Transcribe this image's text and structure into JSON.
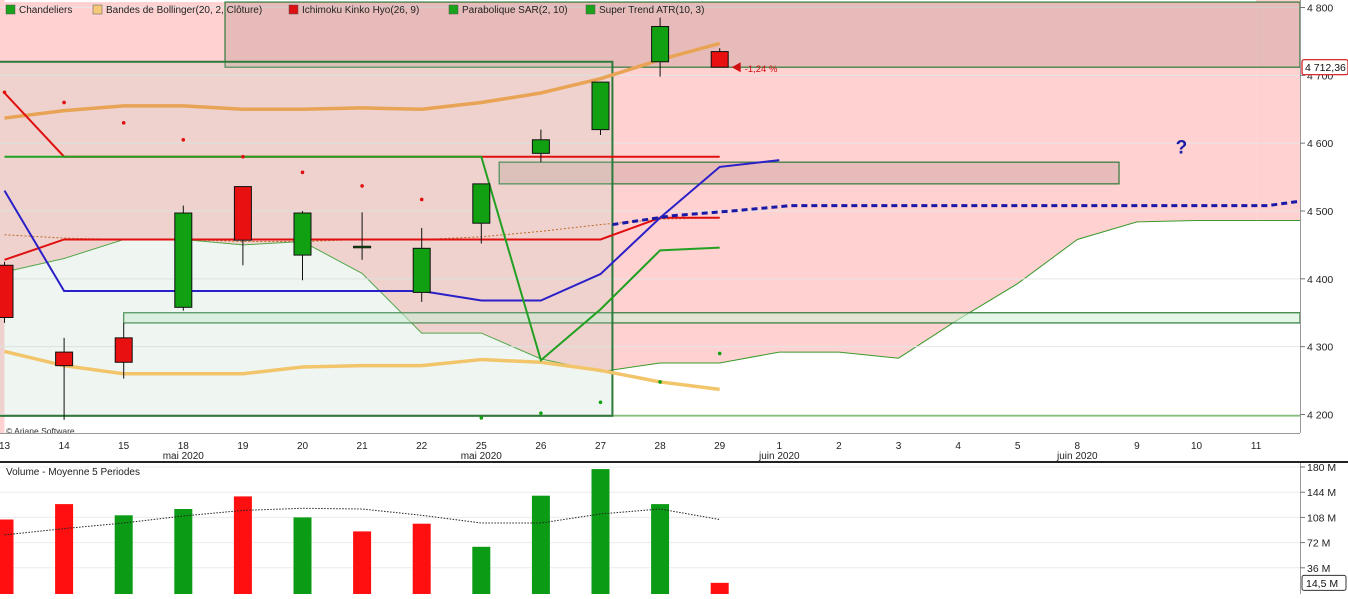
{
  "chart_data": [
    {
      "type": "candlestick",
      "legend": [
        {
          "label": "Chandeliers",
          "color": "#1aa31a"
        },
        {
          "label": "Bandes de Bollinger(20, 2, Clôture)",
          "color": "#f5c87a"
        },
        {
          "label": "Ichimoku Kinko Hyo(26, 9)",
          "color": "#dd1111"
        },
        {
          "label": "Parabolique SAR(2, 10)",
          "color": "#1aa31a"
        },
        {
          "label": "Super Trend ATR(10, 3)",
          "color": "#1aa31a"
        }
      ],
      "legend_position": "top-left",
      "copyright": "© Ariane Software",
      "ylim": [
        4180,
        4810
      ],
      "y_ticks": [
        4200,
        4300,
        4400,
        4500,
        4600,
        4700,
        4800
      ],
      "y_tick_labels": [
        "4 200",
        "4 300",
        "4 400",
        "4 500",
        "4 600",
        "4 700",
        "4 800"
      ],
      "last_price_label": "4 712,36",
      "last_change_label": "-1,24 %",
      "question_mark": "?",
      "x_ticks": [
        {
          "label": "13",
          "slot": 0
        },
        {
          "label": "14",
          "slot": 1
        },
        {
          "label": "15",
          "slot": 2
        },
        {
          "label": "18",
          "slot": 3
        },
        {
          "label": "19",
          "slot": 4
        },
        {
          "label": "20",
          "slot": 5
        },
        {
          "label": "21",
          "slot": 6
        },
        {
          "label": "22",
          "slot": 7
        },
        {
          "label": "25",
          "slot": 8
        },
        {
          "label": "26",
          "slot": 9
        },
        {
          "label": "27",
          "slot": 10
        },
        {
          "label": "28",
          "slot": 11
        },
        {
          "label": "29",
          "slot": 12
        },
        {
          "label": "1",
          "slot": 13
        },
        {
          "label": "2",
          "slot": 14
        },
        {
          "label": "3",
          "slot": 15
        },
        {
          "label": "4",
          "slot": 16
        },
        {
          "label": "5",
          "slot": 17
        },
        {
          "label": "8",
          "slot": 18
        },
        {
          "label": "9",
          "slot": 19
        },
        {
          "label": "10",
          "slot": 20
        },
        {
          "label": "11",
          "slot": 21
        }
      ],
      "month_labels": [
        {
          "label": "mai 2020",
          "slot": 3
        },
        {
          "label": "mai 2020",
          "slot": 8
        },
        {
          "label": "juin 2020",
          "slot": 13
        },
        {
          "label": "juin 2020",
          "slot": 18
        }
      ],
      "candles": [
        {
          "date": "13",
          "open": 4420,
          "high": 4425,
          "low": 4335,
          "close": 4343
        },
        {
          "date": "14",
          "open": 4292,
          "high": 4313,
          "low": 4192,
          "close": 4272
        },
        {
          "date": "15",
          "open": 4313,
          "high": 4335,
          "low": 4253,
          "close": 4277
        },
        {
          "date": "18",
          "open": 4358,
          "high": 4508,
          "low": 4353,
          "close": 4497
        },
        {
          "date": "19",
          "open": 4536,
          "high": 4536,
          "low": 4420,
          "close": 4457
        },
        {
          "date": "20",
          "open": 4435,
          "high": 4500,
          "low": 4398,
          "close": 4497
        },
        {
          "date": "21",
          "open": 4448,
          "high": 4498,
          "low": 4428,
          "close": 4448
        },
        {
          "date": "22",
          "open": 4380,
          "high": 4475,
          "low": 4366,
          "close": 4445
        },
        {
          "date": "25",
          "open": 4482,
          "high": 4540,
          "low": 4452,
          "close": 4540
        },
        {
          "date": "26",
          "open": 4585,
          "high": 4620,
          "low": 4572,
          "close": 4605
        },
        {
          "date": "27",
          "open": 4620,
          "high": 4690,
          "low": 4612,
          "close": 4690
        },
        {
          "date": "28",
          "open": 4720,
          "high": 4785,
          "low": 4698,
          "close": 4772
        },
        {
          "date": "29",
          "open": 4735,
          "high": 4740,
          "low": 4712,
          "close": 4712
        }
      ],
      "bollinger": {
        "upper": [
          4637,
          4648,
          4655,
          4655,
          4650,
          4650,
          4652,
          4650,
          4660,
          4674,
          4695,
          4723,
          4747
        ],
        "middle": [
          4465,
          4460,
          4458,
          4458,
          4455,
          4455,
          4458,
          4458,
          4462,
          4470,
          4480,
          4488,
          4490
        ],
        "lower": [
          4293,
          4272,
          4260,
          4260,
          4260,
          4270,
          4272,
          4272,
          4281,
          4277,
          4265,
          4248,
          4237
        ]
      },
      "ichimoku": {
        "tenkan": [
          4428,
          4458,
          4458,
          4458,
          4458,
          4458,
          4458,
          4458,
          4458,
          4458,
          4458,
          4490,
          4490
        ],
        "kijun": [
          4674,
          4580,
          4580,
          4580,
          4580,
          4580,
          4580,
          4580,
          4580,
          4580,
          4580,
          4580,
          4580
        ],
        "signal_line": [
          4530,
          4382,
          4382,
          4382,
          4382,
          4382,
          4382,
          4382,
          4368,
          4368,
          4407,
          4490,
          4565,
          4575
        ],
        "span_a_red": [
          4808,
          4808,
          4808,
          4808,
          4808,
          4808,
          4808,
          4808,
          4808,
          4808,
          4808,
          4808,
          4808,
          4808,
          4808,
          4808,
          4808,
          4808,
          4808,
          4808,
          4808,
          4808
        ],
        "span_b_green": [
          4410,
          4430,
          4458,
          4458,
          4450,
          4455,
          4408,
          4320,
          4320,
          4282,
          4263,
          4276,
          4276,
          4292,
          4292,
          4283,
          4340,
          4393,
          4458,
          4484,
          4486,
          4486
        ]
      },
      "parabolic_sar": [
        4675,
        4660,
        4630,
        4605,
        4580,
        4557,
        4537,
        4517,
        4195,
        4202,
        4218,
        4248,
        4290
      ],
      "supertrend": [
        4580,
        4580,
        4580,
        4580,
        4580,
        4580,
        4580,
        4580,
        4580,
        4280,
        4355,
        4442,
        4446
      ],
      "projection": [
        4480,
        4493,
        4500,
        4508,
        4508,
        4508,
        4508,
        4508,
        4508,
        4508,
        4508,
        4508,
        4520,
        4555,
        4600
      ],
      "zones": [
        {
          "name": "resistance-zone",
          "from_slot": 3.7,
          "to_slot": 23,
          "low": 4712,
          "high": 4808
        },
        {
          "name": "upper-gap-zone",
          "from_slot": 8.3,
          "to_slot": 18.7,
          "low": 4540,
          "high": 4572
        },
        {
          "name": "lower-gap-zone",
          "from_slot": 2.0,
          "to_slot": 23,
          "low": 4335,
          "high": 4350
        },
        {
          "name": "range-box",
          "from_slot": -1,
          "to_slot": 10.2,
          "low": 4198,
          "high": 4720
        }
      ]
    },
    {
      "type": "bar",
      "title": "Volume  - Moyenne 5 Periodes",
      "ylim": [
        0,
        180
      ],
      "y_ticks": [
        36,
        72,
        108,
        144,
        180
      ],
      "y_tick_labels": [
        "36 M",
        "72 M",
        "108 M",
        "144 M",
        "180 M"
      ],
      "last_value_label": "14,5 M",
      "values": [
        105,
        127,
        111,
        120,
        138,
        108,
        88,
        99,
        66,
        139,
        177,
        127,
        14.5
      ],
      "colors": [
        "red",
        "red",
        "green",
        "green",
        "red",
        "green",
        "red",
        "red",
        "green",
        "green",
        "green",
        "green",
        "red"
      ],
      "average": [
        83,
        92,
        100,
        110,
        118,
        121,
        120,
        111,
        100,
        100,
        113,
        120,
        105
      ]
    }
  ]
}
